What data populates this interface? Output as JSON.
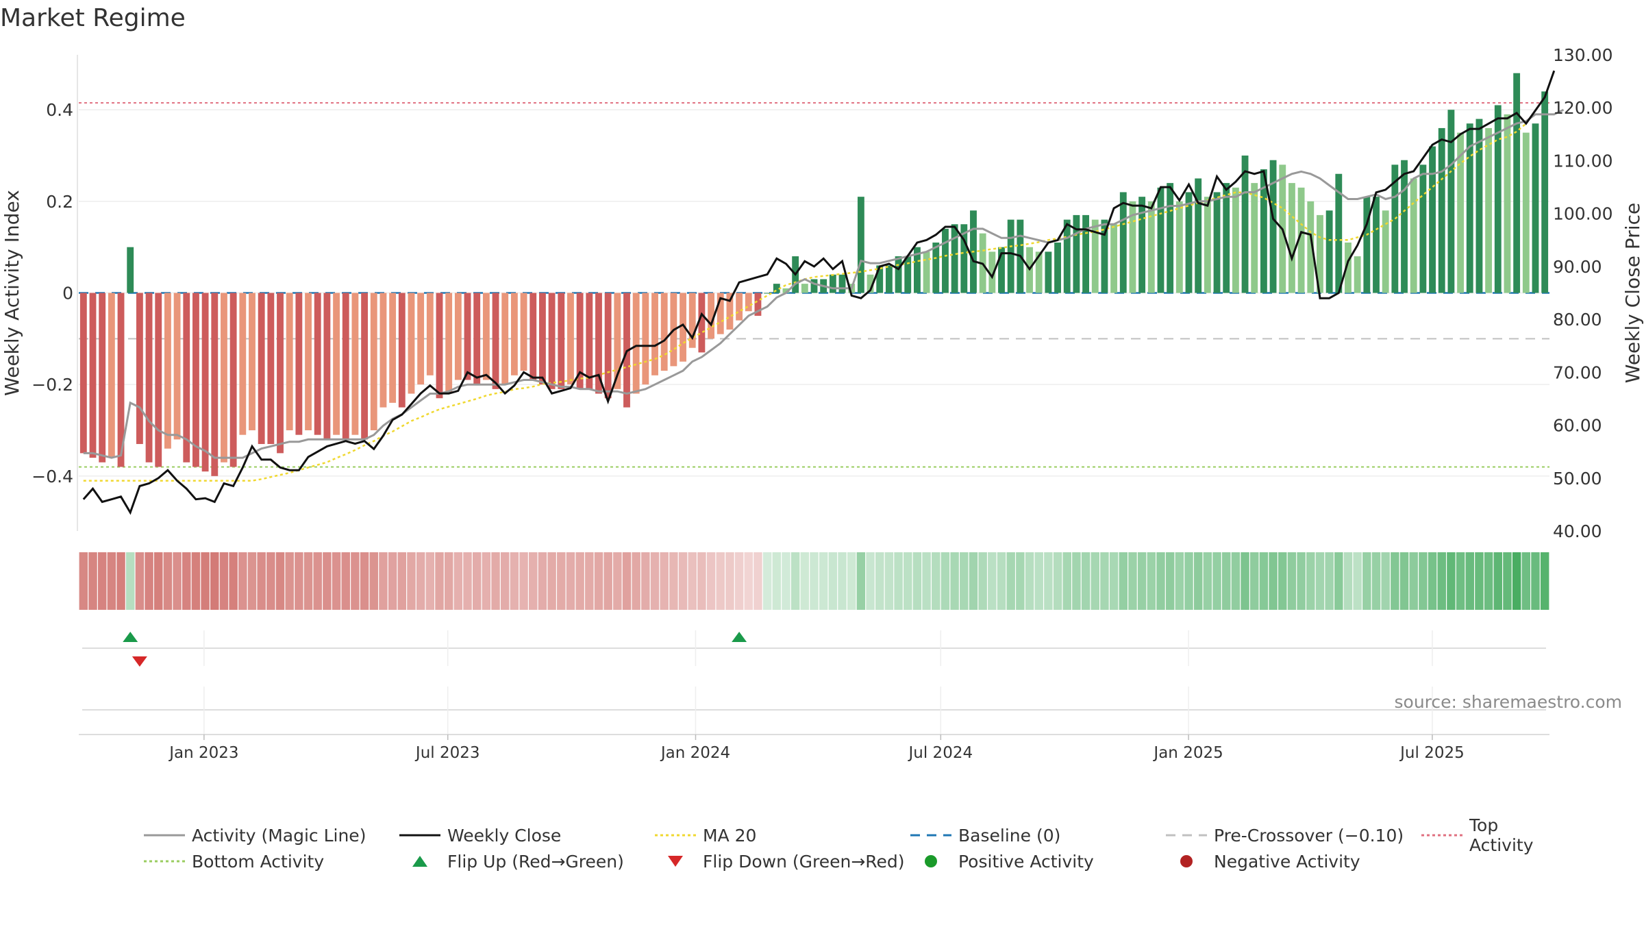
{
  "page": {
    "title": "Market Regime",
    "source": "source: sharemaestro.com"
  },
  "colors": {
    "bar_strong_red": "#cd5c5c",
    "bar_light_red": "#e9967a",
    "bar_strong_green": "#2e8b57",
    "bar_light_green": "#8fc98b",
    "activity_line": "#999999",
    "close_line": "#111111",
    "ma20": "#f0d830",
    "baseline": "#1f77b4",
    "pre_crossover": "#c0c0c0",
    "top_activity": "#e07080",
    "bottom_activity": "#9acd60",
    "flip_up": "#1a9a4a",
    "flip_down": "#d62728",
    "positive_activity": "#1a9a2a",
    "negative_activity": "#b22222"
  },
  "legend": [
    {
      "label": "Activity (Magic Line)",
      "icon": "solid-grey-line"
    },
    {
      "label": "Weekly Close",
      "icon": "solid-black-line"
    },
    {
      "label": "MA 20",
      "icon": "dotted-yellow-line"
    },
    {
      "label": "Baseline (0)",
      "icon": "dashed-blue-line"
    },
    {
      "label": "Pre-Crossover (−0.10)",
      "icon": "dashed-grey-line"
    },
    {
      "label": "Top Activity",
      "icon": "dotted-red-line"
    },
    {
      "label": "Bottom Activity",
      "icon": "dotted-green-line"
    },
    {
      "label": "Flip Up (Red→Green)",
      "icon": "green-up-triangle"
    },
    {
      "label": "Flip Down (Green→Red)",
      "icon": "red-down-triangle"
    },
    {
      "label": "Positive Activity",
      "icon": "green-circle"
    },
    {
      "label": "Negative Activity",
      "icon": "red-circle"
    }
  ],
  "chart_data": {
    "type": "bar",
    "title": "Market Regime",
    "x_axis": {
      "type": "date",
      "start": "2022-09-30",
      "end": "2025-09-26",
      "ticks": [
        {
          "date": "2023-01-01",
          "label": "Jan 2023"
        },
        {
          "date": "2023-07-01",
          "label": "Jul 2023"
        },
        {
          "date": "2024-01-01",
          "label": "Jan 2024"
        },
        {
          "date": "2024-07-01",
          "label": "Jul 2024"
        },
        {
          "date": "2025-01-01",
          "label": "Jan 2025"
        },
        {
          "date": "2025-07-01",
          "label": "Jul 2025"
        }
      ]
    },
    "y_left": {
      "label": "Weekly Activity Index",
      "range": [
        -0.52,
        0.52
      ],
      "ticks": [
        0.4,
        0.2,
        0,
        -0.2,
        -0.4
      ],
      "tick_labels": [
        "0.4",
        "0.2",
        "0",
        "−0.2",
        "−0.4"
      ]
    },
    "y_right": {
      "label": "Weekly Close Price",
      "range": [
        40,
        130
      ],
      "ticks": [
        130,
        120,
        110,
        100,
        90,
        80,
        70,
        60,
        50,
        40
      ],
      "tick_labels": [
        "130.00",
        "120.00",
        "110.00",
        "100.00",
        "90.00",
        "80.00",
        "70.00",
        "60.00",
        "50.00",
        "40.00"
      ]
    },
    "reference_lines": {
      "baseline": 0,
      "pre_crossover": -0.1,
      "top_activity": 0.415,
      "bottom_activity": -0.38
    },
    "weeks": 157,
    "activity_index": [
      -0.35,
      -0.36,
      -0.37,
      -0.36,
      -0.38,
      0.1,
      -0.33,
      -0.37,
      -0.38,
      -0.34,
      -0.32,
      -0.37,
      -0.38,
      -0.39,
      -0.4,
      -0.37,
      -0.38,
      -0.31,
      -0.3,
      -0.33,
      -0.33,
      -0.35,
      -0.3,
      -0.31,
      -0.3,
      -0.31,
      -0.32,
      -0.31,
      -0.32,
      -0.31,
      -0.32,
      -0.3,
      -0.25,
      -0.24,
      -0.25,
      -0.22,
      -0.2,
      -0.18,
      -0.23,
      -0.22,
      -0.19,
      -0.19,
      -0.2,
      -0.19,
      -0.21,
      -0.2,
      -0.18,
      -0.17,
      -0.19,
      -0.2,
      -0.21,
      -0.21,
      -0.2,
      -0.21,
      -0.21,
      -0.22,
      -0.23,
      -0.21,
      -0.25,
      -0.22,
      -0.2,
      -0.18,
      -0.17,
      -0.16,
      -0.15,
      -0.12,
      -0.13,
      -0.1,
      -0.09,
      -0.08,
      -0.06,
      -0.04,
      -0.05,
      0.0,
      0.02,
      0.01,
      0.08,
      0.02,
      0.03,
      0.03,
      0.04,
      0.04,
      0.02,
      0.21,
      0.04,
      0.06,
      0.06,
      0.08,
      0.08,
      0.1,
      0.09,
      0.11,
      0.14,
      0.15,
      0.15,
      0.18,
      0.13,
      0.09,
      0.1,
      0.16,
      0.16,
      0.1,
      0.09,
      0.09,
      0.11,
      0.16,
      0.17,
      0.17,
      0.16,
      0.16,
      0.15,
      0.22,
      0.2,
      0.21,
      0.2,
      0.23,
      0.24,
      0.2,
      0.22,
      0.25,
      0.21,
      0.22,
      0.24,
      0.23,
      0.3,
      0.24,
      0.27,
      0.29,
      0.28,
      0.24,
      0.23,
      0.2,
      0.17,
      0.18,
      0.26,
      0.11,
      0.08,
      0.21,
      0.21,
      0.18,
      0.28,
      0.29,
      0.25,
      0.28,
      0.32,
      0.36,
      0.4,
      0.35,
      0.37,
      0.38,
      0.36,
      0.41,
      0.39,
      0.48,
      0.35,
      0.37,
      0.44
    ],
    "activity_magic_line": [
      -0.35,
      -0.35,
      -0.355,
      -0.36,
      -0.355,
      -0.24,
      -0.25,
      -0.28,
      -0.3,
      -0.31,
      -0.31,
      -0.32,
      -0.335,
      -0.345,
      -0.36,
      -0.36,
      -0.36,
      -0.36,
      -0.35,
      -0.34,
      -0.335,
      -0.33,
      -0.325,
      -0.325,
      -0.32,
      -0.32,
      -0.32,
      -0.32,
      -0.32,
      -0.32,
      -0.32,
      -0.31,
      -0.29,
      -0.275,
      -0.265,
      -0.25,
      -0.235,
      -0.22,
      -0.22,
      -0.215,
      -0.205,
      -0.2,
      -0.2,
      -0.2,
      -0.2,
      -0.2,
      -0.195,
      -0.19,
      -0.19,
      -0.195,
      -0.2,
      -0.205,
      -0.205,
      -0.21,
      -0.21,
      -0.215,
      -0.215,
      -0.215,
      -0.22,
      -0.215,
      -0.21,
      -0.2,
      -0.19,
      -0.18,
      -0.17,
      -0.15,
      -0.14,
      -0.125,
      -0.11,
      -0.09,
      -0.07,
      -0.05,
      -0.04,
      -0.03,
      -0.01,
      0.0,
      0.02,
      0.03,
      0.02,
      0.015,
      0.01,
      0.01,
      0.01,
      0.07,
      0.065,
      0.065,
      0.07,
      0.075,
      0.08,
      0.085,
      0.09,
      0.1,
      0.11,
      0.12,
      0.13,
      0.14,
      0.14,
      0.13,
      0.12,
      0.12,
      0.125,
      0.12,
      0.115,
      0.11,
      0.115,
      0.12,
      0.13,
      0.14,
      0.145,
      0.15,
      0.15,
      0.16,
      0.17,
      0.175,
      0.18,
      0.185,
      0.19,
      0.19,
      0.195,
      0.2,
      0.2,
      0.205,
      0.21,
      0.21,
      0.22,
      0.22,
      0.23,
      0.24,
      0.25,
      0.26,
      0.265,
      0.26,
      0.25,
      0.235,
      0.22,
      0.205,
      0.205,
      0.21,
      0.215,
      0.205,
      0.21,
      0.225,
      0.25,
      0.26,
      0.26,
      0.265,
      0.28,
      0.3,
      0.32,
      0.33,
      0.34,
      0.35,
      0.36,
      0.37,
      0.375,
      0.39,
      0.39,
      0.39,
      0.4
    ],
    "weekly_close": [
      46,
      48,
      45.5,
      46,
      46.5,
      43.5,
      48.5,
      49,
      50,
      51.5,
      49.5,
      48,
      46,
      46.2,
      45.5,
      49,
      48.5,
      52,
      56,
      53.5,
      53.5,
      52,
      51.5,
      51.5,
      54,
      55,
      56,
      56.5,
      57,
      56.5,
      57,
      55.5,
      58,
      61,
      62,
      64,
      66,
      67.5,
      66,
      66,
      66.5,
      70,
      69,
      69.5,
      68,
      66,
      67.5,
      70,
      69,
      69,
      66,
      66.5,
      67,
      70,
      69,
      69.5,
      64.5,
      69.5,
      74,
      75,
      75,
      75,
      76,
      78,
      79,
      76.5,
      81,
      79,
      84,
      83.5,
      87,
      87.5,
      88,
      88.5,
      91.5,
      90.5,
      88.5,
      91,
      90,
      91.5,
      89.5,
      91,
      84.5,
      84,
      85.5,
      90,
      90.5,
      89.5,
      92,
      94.5,
      95,
      96,
      97.5,
      97.5,
      95,
      91,
      90.5,
      88,
      92.5,
      92.5,
      92,
      89.5,
      92,
      94.5,
      95,
      98,
      97,
      97,
      96.5,
      96,
      101,
      102,
      101.5,
      101.5,
      101,
      105,
      105,
      102.5,
      105.5,
      102,
      101.5,
      107,
      104.5,
      106,
      108,
      107.5,
      108,
      99,
      97,
      91.5,
      96.5,
      96,
      84,
      84,
      85,
      91,
      94,
      98,
      104,
      104.5,
      106,
      107.5,
      108,
      110.5,
      113,
      114,
      113.5,
      115,
      116,
      116,
      117,
      118,
      118,
      119,
      117,
      119.5,
      122,
      127
    ],
    "ma20": [
      49.5,
      49.5,
      49.5,
      49.5,
      49.5,
      49.5,
      49.5,
      49.5,
      49.5,
      49.5,
      49.5,
      49.5,
      49.5,
      49.5,
      49.5,
      49.5,
      49.5,
      49.5,
      49.5,
      49.8,
      50.2,
      50.6,
      51,
      51.5,
      52,
      52.5,
      53,
      53.8,
      54.5,
      55.3,
      56.2,
      57,
      58,
      58.8,
      59.8,
      60.8,
      61.5,
      62.3,
      63,
      63.5,
      64,
      64.5,
      65,
      65.6,
      66,
      66.3,
      66.8,
      67,
      67.3,
      67.8,
      68,
      68.2,
      68.5,
      68.8,
      69,
      69.5,
      70,
      70.5,
      71,
      71.5,
      72,
      72.5,
      73.3,
      74.3,
      75.5,
      76.5,
      77.5,
      78.5,
      79.5,
      80.5,
      81.5,
      82.5,
      83.5,
      84.5,
      85.5,
      86.5,
      87,
      87.6,
      88,
      88.2,
      88.4,
      88.6,
      88.8,
      89,
      89.3,
      89.6,
      90,
      90.3,
      90.6,
      91,
      91.3,
      91.6,
      92,
      92.3,
      92.6,
      92.8,
      93,
      93.3,
      93.5,
      93.8,
      94,
      94.3,
      94.6,
      95,
      95.3,
      95.6,
      96,
      96.3,
      96.6,
      97,
      97.5,
      98,
      98.5,
      99,
      99.5,
      100,
      100.5,
      101,
      101.5,
      102,
      102.5,
      103,
      103.5,
      104,
      104,
      103.5,
      103,
      102,
      101,
      99.5,
      98,
      96.5,
      95.5,
      95,
      95,
      95,
      95.5,
      96,
      97,
      98,
      99,
      100.5,
      102,
      103.5,
      105,
      106.5,
      108,
      109.5,
      110.8,
      112,
      113,
      114,
      114.5,
      115.5,
      117
    ],
    "signals": {
      "flip_up_weeks": [
        5,
        70
      ],
      "flip_down_weeks": [
        6
      ]
    }
  }
}
